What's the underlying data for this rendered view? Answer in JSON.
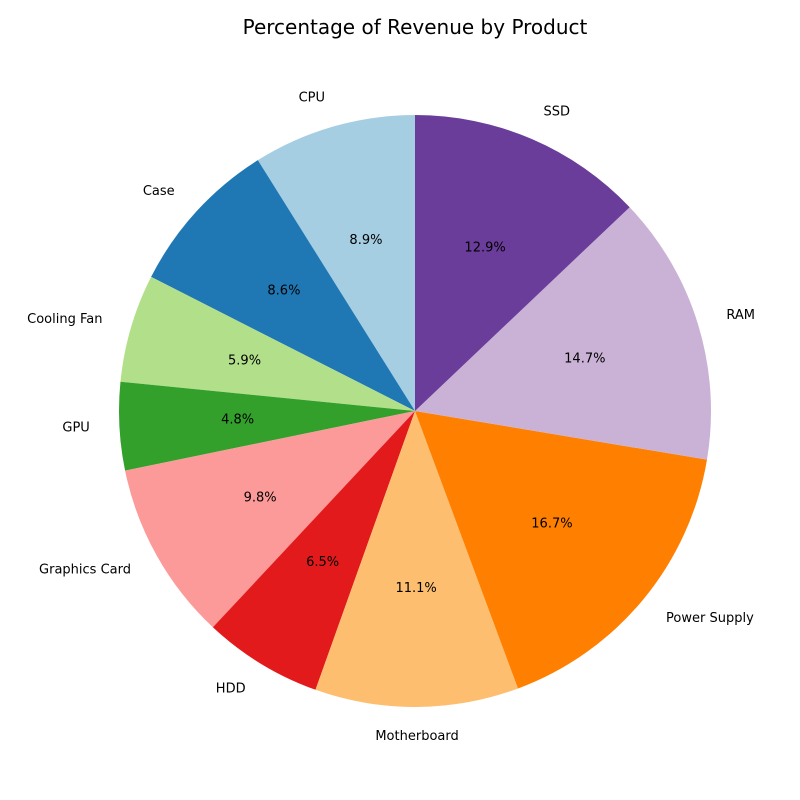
{
  "chart_data": {
    "type": "pie",
    "title": "Percentage of Revenue by Product",
    "start_angle_deg": 90,
    "direction": "counterclockwise",
    "slices": [
      {
        "label": "CPU",
        "value": 8.9,
        "pct_text": "8.9%",
        "color": "#a6cee3"
      },
      {
        "label": "Case",
        "value": 8.6,
        "pct_text": "8.6%",
        "color": "#1f78b4"
      },
      {
        "label": "Cooling Fan",
        "value": 5.9,
        "pct_text": "5.9%",
        "color": "#b2df8a"
      },
      {
        "label": "GPU",
        "value": 4.8,
        "pct_text": "4.8%",
        "color": "#33a02c"
      },
      {
        "label": "Graphics Card",
        "value": 9.8,
        "pct_text": "9.8%",
        "color": "#fb9a99"
      },
      {
        "label": "HDD",
        "value": 6.5,
        "pct_text": "6.5%",
        "color": "#e31a1c"
      },
      {
        "label": "Motherboard",
        "value": 11.1,
        "pct_text": "11.1%",
        "color": "#fdbf6f"
      },
      {
        "label": "Power Supply",
        "value": 16.7,
        "pct_text": "16.7%",
        "color": "#ff7f00"
      },
      {
        "label": "RAM",
        "value": 14.7,
        "pct_text": "14.7%",
        "color": "#cab2d6"
      },
      {
        "label": "SSD",
        "value": 12.9,
        "pct_text": "12.9%",
        "color": "#6a3d9a"
      }
    ]
  }
}
